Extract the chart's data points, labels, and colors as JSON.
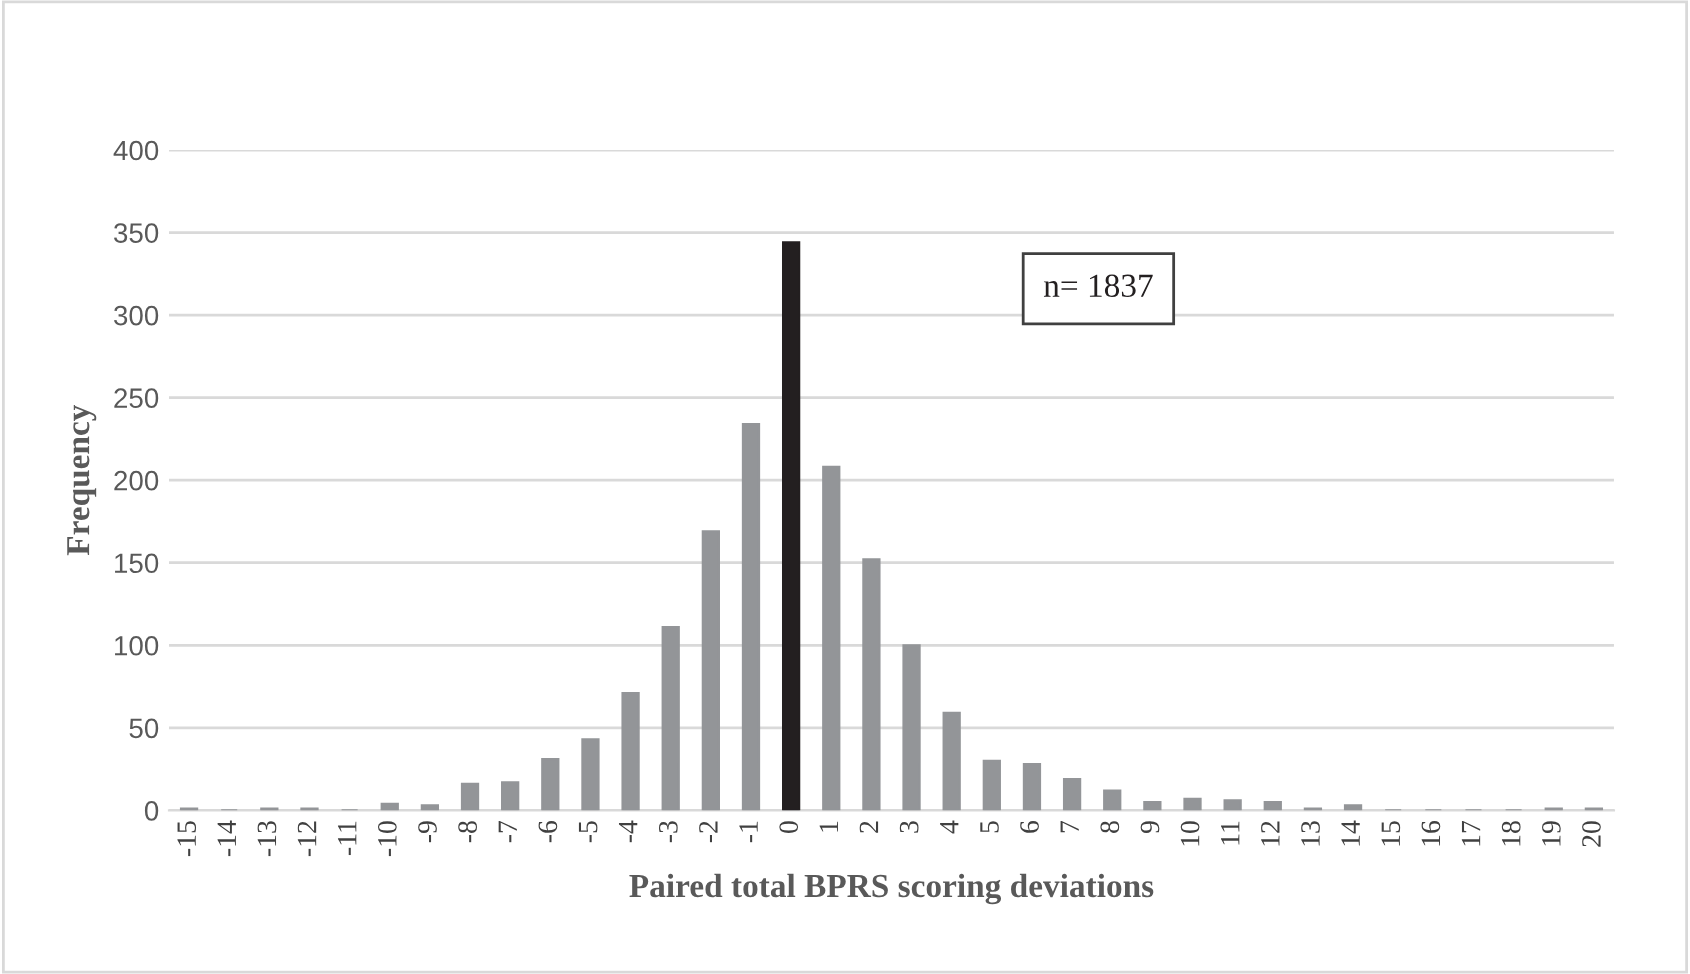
{
  "chart_data": {
    "type": "bar",
    "xlabel": "Paired total BPRS scoring deviations",
    "ylabel": "Frequency",
    "categories": [
      "-15",
      "-14",
      "-13",
      "-12",
      "-11",
      "-10",
      "-9",
      "-8",
      "-7",
      "-6",
      "-5",
      "-4",
      "-3",
      "-2",
      "-1",
      "0",
      "1",
      "2",
      "3",
      "4",
      "5",
      "6",
      "7",
      "8",
      "9",
      "10",
      "11",
      "12",
      "13",
      "14",
      "15",
      "16",
      "17",
      "18",
      "19",
      "20"
    ],
    "values": [
      1,
      0,
      1,
      1,
      0,
      4,
      3,
      16,
      17,
      31,
      43,
      71,
      111,
      169,
      234,
      344,
      208,
      152,
      100,
      59,
      30,
      28,
      19,
      12,
      5,
      7,
      6,
      5,
      1,
      3,
      0,
      0,
      0,
      0,
      1,
      1
    ],
    "colors": [
      "#939598",
      "#939598",
      "#939598",
      "#939598",
      "#939598",
      "#939598",
      "#939598",
      "#939598",
      "#939598",
      "#939598",
      "#939598",
      "#939598",
      "#939598",
      "#939598",
      "#939598",
      "#231f20",
      "#939598",
      "#939598",
      "#939598",
      "#939598",
      "#939598",
      "#939598",
      "#939598",
      "#939598",
      "#939598",
      "#939598",
      "#939598",
      "#939598",
      "#939598",
      "#939598",
      "#939598",
      "#939598",
      "#939598",
      "#939598",
      "#939598",
      "#939598"
    ],
    "ylim": [
      0,
      400
    ],
    "yticks": [
      0,
      50,
      100,
      150,
      200,
      250,
      300,
      350,
      400
    ],
    "grid": "y",
    "annotations": [
      "n= 1837"
    ]
  }
}
